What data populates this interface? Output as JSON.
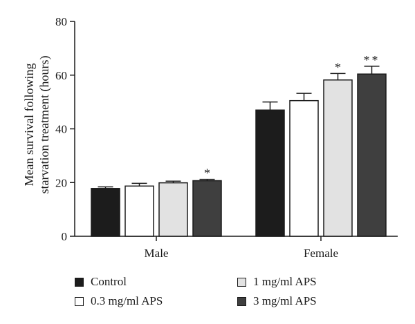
{
  "chart_data": {
    "type": "bar",
    "categories": [
      "Male",
      "Female"
    ],
    "series": [
      {
        "name": "Control",
        "values": [
          17.8,
          47.0
        ],
        "errors": [
          0.6,
          3.0
        ],
        "color": "#1c1c1c",
        "significance": [
          "",
          ""
        ]
      },
      {
        "name": "0.3 mg/ml APS",
        "values": [
          18.7,
          50.5
        ],
        "errors": [
          1.0,
          2.7
        ],
        "color": "#ffffff",
        "significance": [
          "",
          ""
        ]
      },
      {
        "name": "1 mg/ml APS",
        "values": [
          19.9,
          58.2
        ],
        "errors": [
          0.6,
          2.4
        ],
        "color": "#e2e2e2",
        "significance": [
          "",
          "*"
        ]
      },
      {
        "name": "3 mg/ml APS",
        "values": [
          20.7,
          60.4
        ],
        "errors": [
          0.5,
          2.9
        ],
        "color": "#3f3f3f",
        "significance": [
          "*",
          "**"
        ]
      }
    ],
    "ylabel": "Mean survival following starvation treatment (hours)",
    "ylabel_lines": [
      "Mean survival following",
      "starvation treatment (hours)"
    ],
    "xlabel": "",
    "ylim": [
      0,
      80
    ],
    "yticks": [
      0,
      20,
      40,
      60,
      80
    ],
    "error_bars": true,
    "grid": false,
    "legend": {
      "position": "bottom",
      "columns": 2
    }
  }
}
